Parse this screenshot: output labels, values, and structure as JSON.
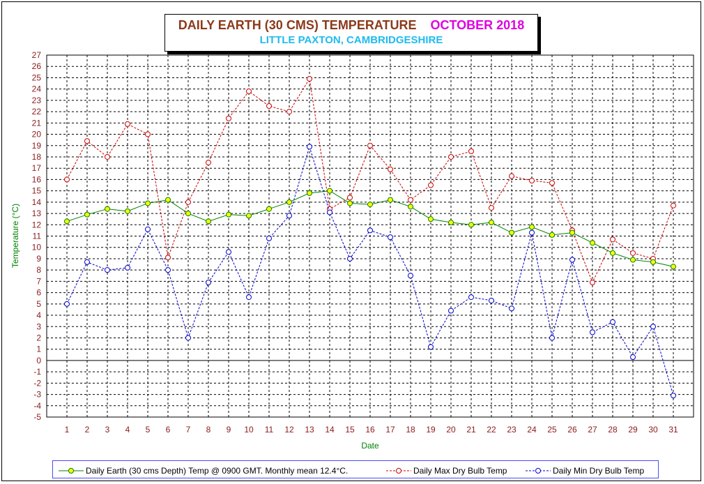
{
  "colors": {
    "earth": "#008000",
    "earth_marker": "#FFFF00",
    "max": "#CC0000",
    "min": "#0000CC",
    "axis_label": "#008000",
    "tick_label": "#8B1A1A",
    "legend_border": "#4a4aff"
  },
  "chart_data": {
    "type": "line",
    "title": "DAILY EARTH (30 CMS) TEMPERATURE",
    "month": "OCTOBER 2018",
    "subtitle": "LITTLE PAXTON, CAMBRIDGESHIRE",
    "xlabel": "Date",
    "ylabel": "Temperature (°C)",
    "ylim": [
      -5,
      27
    ],
    "ytick_step": 1,
    "grid": true,
    "legend_position": "bottom",
    "x": [
      1,
      2,
      3,
      4,
      5,
      6,
      7,
      8,
      9,
      10,
      11,
      12,
      13,
      14,
      15,
      16,
      17,
      18,
      19,
      20,
      21,
      22,
      23,
      24,
      25,
      26,
      27,
      28,
      29,
      30,
      31
    ],
    "series": [
      {
        "name": "Daily Earth (30 cms Depth) Temp @ 0900 GMT. Monthly mean 12.4°C.",
        "key": "earth",
        "style": "solid",
        "values": [
          12.3,
          12.9,
          13.4,
          13.2,
          13.9,
          14.2,
          13.0,
          12.3,
          12.9,
          12.8,
          13.4,
          14.0,
          14.8,
          15.0,
          13.9,
          13.8,
          14.2,
          13.6,
          12.5,
          12.2,
          12.0,
          12.2,
          11.3,
          11.8,
          11.1,
          11.3,
          10.4,
          9.5,
          8.9,
          8.7,
          8.3
        ]
      },
      {
        "name": "Daily Max Dry Bulb Temp",
        "key": "max",
        "style": "dashed",
        "values": [
          16.0,
          19.4,
          18.0,
          20.9,
          20.0,
          9.1,
          14.0,
          17.5,
          21.4,
          23.8,
          22.5,
          22.0,
          24.9,
          13.4,
          14.4,
          19.0,
          16.9,
          14.2,
          15.5,
          18.0,
          18.5,
          13.5,
          16.3,
          15.9,
          15.7,
          11.5,
          6.9,
          10.7,
          9.5,
          9.0,
          13.7
        ]
      },
      {
        "name": "Daily Min Dry Bulb Temp",
        "key": "min",
        "style": "dashed",
        "values": [
          5.0,
          8.7,
          8.0,
          8.2,
          11.6,
          8.0,
          2.0,
          6.9,
          9.6,
          5.6,
          10.8,
          12.8,
          18.9,
          13.1,
          9.0,
          11.5,
          10.9,
          7.5,
          1.2,
          4.4,
          5.6,
          5.3,
          4.6,
          11.3,
          2.0,
          8.9,
          2.5,
          3.4,
          0.3,
          3.0,
          -3.1
        ]
      }
    ]
  }
}
